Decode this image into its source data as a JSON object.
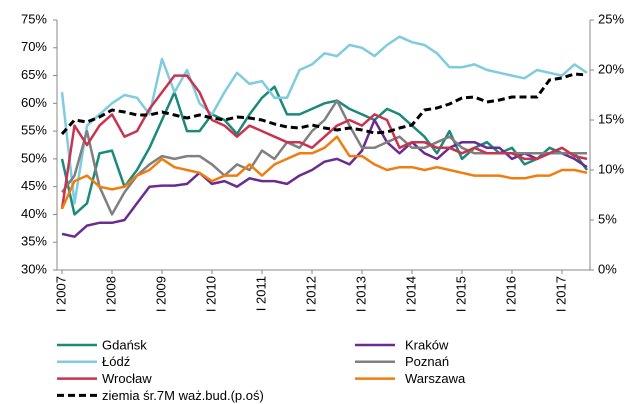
{
  "chart_data": {
    "type": "line",
    "categories": [
      "I 2007",
      null,
      null,
      null,
      "I 2008",
      null,
      null,
      null,
      "I 2009",
      null,
      null,
      null,
      "I 2010",
      null,
      null,
      null,
      "I 2011",
      null,
      null,
      null,
      "I 2012",
      null,
      null,
      null,
      "I 2013",
      null,
      null,
      null,
      "I 2014",
      null,
      null,
      null,
      "I 2015",
      null,
      null,
      null,
      "I 2016",
      null,
      null,
      null,
      "I 2017",
      null,
      null
    ],
    "ylim": [
      30,
      75
    ],
    "yticks": [
      {
        "value": 30,
        "label": "30%"
      },
      {
        "value": 35,
        "label": "35%"
      },
      {
        "value": 40,
        "label": "40%"
      },
      {
        "value": 45,
        "label": "45%"
      },
      {
        "value": 50,
        "label": "50%"
      },
      {
        "value": 55,
        "label": "55%"
      },
      {
        "value": 60,
        "label": "60%"
      },
      {
        "value": 65,
        "label": "65%"
      },
      {
        "value": 70,
        "label": "70%"
      },
      {
        "value": 75,
        "label": "75%"
      }
    ],
    "y2lim": [
      0,
      25
    ],
    "y2ticks": [
      {
        "value": 0,
        "label": "0%"
      },
      {
        "value": 5,
        "label": "5%"
      },
      {
        "value": 10,
        "label": "10%"
      },
      {
        "value": 15,
        "label": "15%"
      },
      {
        "value": 20,
        "label": "20%"
      },
      {
        "value": 25,
        "label": "25%"
      }
    ],
    "series": [
      {
        "name": "Gdańsk",
        "color": "#1a8a7a",
        "values": [
          50,
          40,
          42,
          51,
          51.5,
          45,
          48,
          52,
          57,
          62,
          55,
          55,
          58,
          57,
          54.5,
          58,
          61,
          63,
          58,
          58,
          59,
          60,
          60.5,
          59,
          58,
          57,
          59,
          58,
          56,
          54,
          51,
          55,
          50,
          52,
          53,
          51,
          52,
          49,
          50,
          52,
          51,
          51,
          48
        ]
      },
      {
        "name": "Kraków",
        "color": "#6a2c91",
        "values": [
          36.5,
          36,
          38,
          38.5,
          38.5,
          39,
          42,
          45,
          45.2,
          45.2,
          45.5,
          47.5,
          45.5,
          46,
          45,
          46.5,
          46,
          46,
          45.5,
          47,
          48,
          49.5,
          50,
          49,
          51.5,
          57,
          53,
          51,
          53,
          51,
          50,
          52,
          53,
          53,
          52,
          52,
          50,
          51,
          50,
          51,
          51,
          50,
          48.5
        ]
      },
      {
        "name": "Łódź",
        "color": "#7fcbe0",
        "values": [
          62,
          42,
          56,
          58,
          60,
          61.5,
          61,
          58,
          68,
          62,
          66,
          60,
          58,
          62,
          65.5,
          63.5,
          64,
          61,
          61,
          66,
          67,
          69,
          68.5,
          70.5,
          70,
          68.5,
          70.5,
          72,
          71,
          70.5,
          69,
          66.5,
          66.5,
          67,
          66,
          65.5,
          65,
          64.5,
          66,
          65.5,
          65,
          67,
          65.5
        ]
      },
      {
        "name": "Poznań",
        "color": "#808080",
        "values": [
          44,
          47,
          55,
          45,
          40,
          44,
          47,
          49,
          50.5,
          50,
          50.5,
          50.5,
          49,
          47,
          49,
          48,
          51.5,
          50,
          53,
          52,
          55,
          57,
          60.5,
          56,
          52,
          52,
          53,
          54,
          52,
          52,
          53,
          54,
          52,
          51,
          51,
          51,
          51,
          51,
          51,
          51,
          51,
          51,
          51
        ]
      },
      {
        "name": "Wrocław",
        "color": "#c8344f",
        "values": [
          41,
          56,
          52.5,
          56,
          58,
          54,
          55,
          59,
          62,
          65,
          65,
          62,
          57,
          56,
          54,
          56,
          55,
          54,
          53,
          53,
          52,
          54,
          56,
          57,
          56,
          58,
          57,
          52,
          53,
          53,
          52,
          52,
          51,
          52,
          51,
          51,
          51,
          50,
          50,
          51,
          52,
          50.5,
          50
        ]
      },
      {
        "name": "Warszawa",
        "color": "#f07d10",
        "values": [
          41,
          46,
          47,
          45,
          44.5,
          45,
          47,
          48,
          50,
          48.5,
          48,
          47.5,
          46,
          47,
          47,
          49,
          47,
          49,
          50,
          51,
          51,
          52,
          54,
          50.5,
          50.5,
          49,
          48,
          48.5,
          48.5,
          48,
          48.5,
          48,
          47.5,
          47,
          47,
          47,
          46.5,
          46.5,
          47,
          47,
          48,
          48,
          47.5
        ]
      },
      {
        "name": "ziemia śr.7M waż.bud.(p.oś)",
        "color": "#000000",
        "dash": true,
        "axis": "y2",
        "values": [
          13.6,
          15,
          14.8,
          15.3,
          16,
          15.8,
          15.5,
          15.5,
          15.8,
          15.5,
          15.2,
          15.5,
          15.2,
          15,
          15.3,
          15.2,
          15,
          14.6,
          14.3,
          14.2,
          14.5,
          14.2,
          14,
          14.2,
          14,
          13.7,
          13.8,
          14.2,
          14.5,
          16,
          16.2,
          16.6,
          17.2,
          17.3,
          16.8,
          17,
          17.3,
          17.3,
          17.3,
          19,
          19.2,
          19.6,
          19.5
        ]
      }
    ]
  }
}
